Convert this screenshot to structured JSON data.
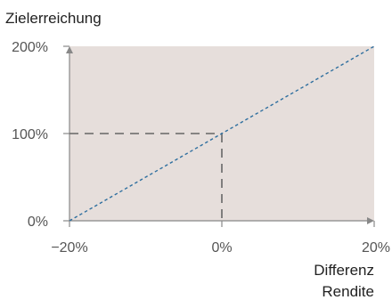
{
  "chart_data": {
    "type": "line",
    "title": "Zielerreichung",
    "xlabel_lines": [
      "Differenz",
      "Rendite"
    ],
    "xlim": [
      -20,
      20
    ],
    "ylim": [
      0,
      200
    ],
    "x_ticks": [
      -20,
      0,
      20
    ],
    "x_tick_labels": [
      "−20%",
      "0%",
      "20%"
    ],
    "y_ticks": [
      0,
      100,
      200
    ],
    "y_tick_labels": [
      "0%",
      "100%",
      "200%"
    ],
    "grid": false,
    "series": [
      {
        "x": [
          -20,
          20
        ],
        "y": [
          0,
          200
        ],
        "color": "#2f6f9f",
        "style": "dotted"
      }
    ],
    "reference_lines": {
      "point": {
        "x": 0,
        "y": 100
      },
      "color": "#666666",
      "style": "dashed"
    },
    "colors": {
      "plot_background": "#e6dedb",
      "axis": "#888888"
    }
  }
}
